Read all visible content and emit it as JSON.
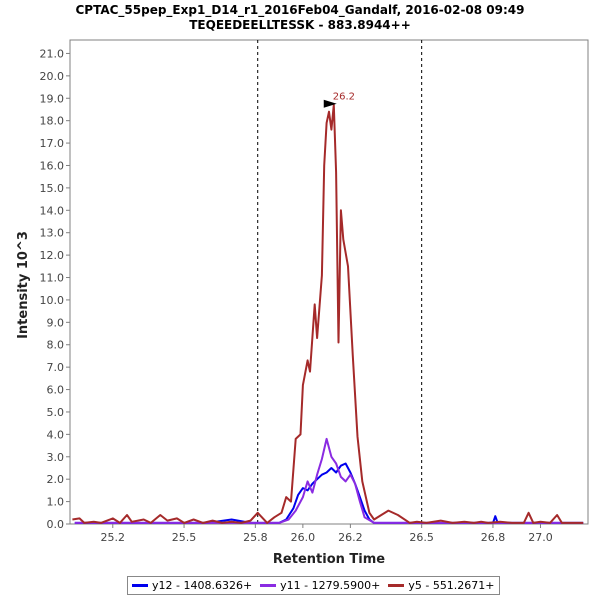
{
  "chart_data": {
    "type": "line",
    "title": "CPTAC_55pep_Exp1_D14_r1_2016Feb04_Gandalf, 2016-02-08 09:49",
    "subtitle": "TEQEEDEELLTESSK - 883.8944++",
    "xlabel": "Retention Time",
    "ylabel": "Intensity 10^3",
    "xlim": [
      25.02,
      27.2
    ],
    "ylim": [
      0,
      21.6
    ],
    "xticks": [
      25.2,
      25.5,
      25.8,
      26.0,
      26.2,
      26.5,
      26.8,
      27.0
    ],
    "xtick_labels": [
      "25.2",
      "25.5",
      "25.8",
      "26.0",
      "26.2",
      "26.5",
      "26.8",
      "27.0"
    ],
    "yticks": [
      0,
      1,
      2,
      3,
      4,
      5,
      6,
      7,
      8,
      9,
      10,
      11,
      12,
      13,
      14,
      15,
      16,
      17,
      18,
      19,
      20,
      21
    ],
    "ytick_labels": [
      "0.0",
      "1.0",
      "2.0",
      "3.0",
      "4.0",
      "5.0",
      "6.0",
      "7.0",
      "8.0",
      "9.0",
      "10.0",
      "11.0",
      "12.0",
      "13.0",
      "14.0",
      "15.0",
      "16.0",
      "17.0",
      "18.0",
      "19.0",
      "20.0",
      "21.0"
    ],
    "vlines": [
      25.81,
      26.5
    ],
    "annotation": {
      "text": "26.2",
      "x": 26.13,
      "y": 18.8
    },
    "series": [
      {
        "name": "y12 - 1408.6326+",
        "color": "#0000ee",
        "x": [
          25.04,
          25.1,
          25.2,
          25.3,
          25.45,
          25.6,
          25.7,
          25.78,
          25.85,
          25.9,
          25.93,
          25.96,
          25.98,
          26.0,
          26.02,
          26.04,
          26.06,
          26.08,
          26.1,
          26.12,
          26.14,
          26.16,
          26.18,
          26.2,
          26.22,
          26.24,
          26.26,
          26.28,
          26.3,
          26.35,
          26.4,
          26.5,
          26.6,
          26.7,
          26.8,
          26.81,
          26.82,
          26.9,
          27.0,
          27.1,
          27.18
        ],
        "y": [
          0.05,
          0.05,
          0.05,
          0.05,
          0.05,
          0.05,
          0.2,
          0.05,
          0.05,
          0.05,
          0.2,
          0.7,
          1.3,
          1.6,
          1.5,
          1.8,
          2.0,
          2.2,
          2.3,
          2.5,
          2.3,
          2.6,
          2.7,
          2.3,
          1.8,
          1.2,
          0.6,
          0.2,
          0.05,
          0.05,
          0.05,
          0.05,
          0.05,
          0.05,
          0.05,
          0.35,
          0.05,
          0.05,
          0.05,
          0.05,
          0.05
        ]
      },
      {
        "name": "y11 - 1279.5900+",
        "color": "#8a2be2",
        "x": [
          25.04,
          25.2,
          25.4,
          25.6,
          25.8,
          25.9,
          25.94,
          25.97,
          26.0,
          26.02,
          26.04,
          26.06,
          26.08,
          26.1,
          26.12,
          26.14,
          26.16,
          26.18,
          26.2,
          26.22,
          26.24,
          26.26,
          26.3,
          26.4,
          26.6,
          26.8,
          27.0,
          27.18
        ],
        "y": [
          0.05,
          0.05,
          0.05,
          0.05,
          0.05,
          0.05,
          0.2,
          0.6,
          1.2,
          1.9,
          1.4,
          2.2,
          2.9,
          3.8,
          3.0,
          2.7,
          2.1,
          1.9,
          2.2,
          1.8,
          1.0,
          0.3,
          0.05,
          0.05,
          0.05,
          0.05,
          0.05,
          0.05
        ]
      },
      {
        "name": "y5 - 551.2671+",
        "color": "#a52a2a",
        "x": [
          25.03,
          25.06,
          25.08,
          25.12,
          25.15,
          25.2,
          25.23,
          25.26,
          25.28,
          25.33,
          25.36,
          25.4,
          25.43,
          25.47,
          25.5,
          25.54,
          25.58,
          25.62,
          25.66,
          25.7,
          25.74,
          25.78,
          25.81,
          25.85,
          25.88,
          25.91,
          25.93,
          25.95,
          25.97,
          25.99,
          26.0,
          26.02,
          26.03,
          26.05,
          26.06,
          26.08,
          26.09,
          26.1,
          26.11,
          26.12,
          26.13,
          26.14,
          26.15,
          26.16,
          26.17,
          26.19,
          26.21,
          26.23,
          26.25,
          26.28,
          26.3,
          26.33,
          26.36,
          26.4,
          26.45,
          26.48,
          26.52,
          26.58,
          26.63,
          26.68,
          26.72,
          26.75,
          26.78,
          26.83,
          26.88,
          26.93,
          26.95,
          26.97,
          27.0,
          27.04,
          27.07,
          27.09,
          27.12,
          27.18
        ],
        "y": [
          0.2,
          0.25,
          0.05,
          0.1,
          0.05,
          0.25,
          0.05,
          0.4,
          0.1,
          0.2,
          0.05,
          0.4,
          0.15,
          0.25,
          0.05,
          0.2,
          0.05,
          0.15,
          0.05,
          0.1,
          0.05,
          0.15,
          0.5,
          0.05,
          0.3,
          0.5,
          1.2,
          1.0,
          3.8,
          4.0,
          6.2,
          7.3,
          6.8,
          9.8,
          8.3,
          11.1,
          16.0,
          17.9,
          18.4,
          17.6,
          18.7,
          15.7,
          8.1,
          14.0,
          12.7,
          11.5,
          7.5,
          3.9,
          1.9,
          0.5,
          0.2,
          0.4,
          0.6,
          0.4,
          0.05,
          0.1,
          0.05,
          0.15,
          0.05,
          0.1,
          0.05,
          0.1,
          0.05,
          0.1,
          0.05,
          0.05,
          0.5,
          0.05,
          0.1,
          0.05,
          0.4,
          0.05,
          0.05,
          0.05
        ]
      }
    ]
  }
}
